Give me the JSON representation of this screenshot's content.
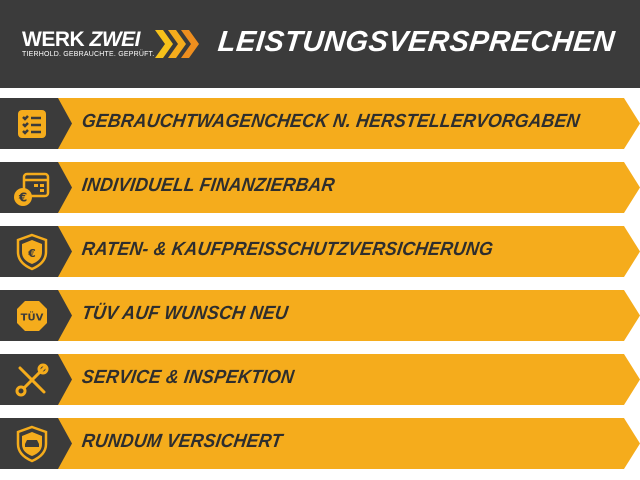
{
  "brand": {
    "name_part1": "WERK",
    "name_part2": "ZWEI",
    "tagline": "TIERHOLD. GEBRAUCHTE. GEPRÜFT."
  },
  "header": {
    "title": "LEISTUNGSVERSPRECHEN"
  },
  "colors": {
    "dark": "#3b3b3b",
    "accent": "#f5ac1c"
  },
  "items": [
    {
      "label": "GEBRAUCHTWAGENCHECK N. HERSTELLERVORGABEN",
      "icon": "checklist-icon"
    },
    {
      "label": "INDIVIDUELL FINANZIERBAR",
      "icon": "calendar-euro-icon"
    },
    {
      "label": "RATEN- & KAUFPREISSCHUTZVERSICHERUNG",
      "icon": "shield-euro-icon"
    },
    {
      "label": "TÜV AUF WUNSCH NEU",
      "icon": "tuv-badge-icon",
      "icon_text": "TÜV"
    },
    {
      "label": "SERVICE & INSPEKTION",
      "icon": "tools-icon"
    },
    {
      "label": "RUNDUM VERSICHERT",
      "icon": "shield-car-icon"
    }
  ]
}
